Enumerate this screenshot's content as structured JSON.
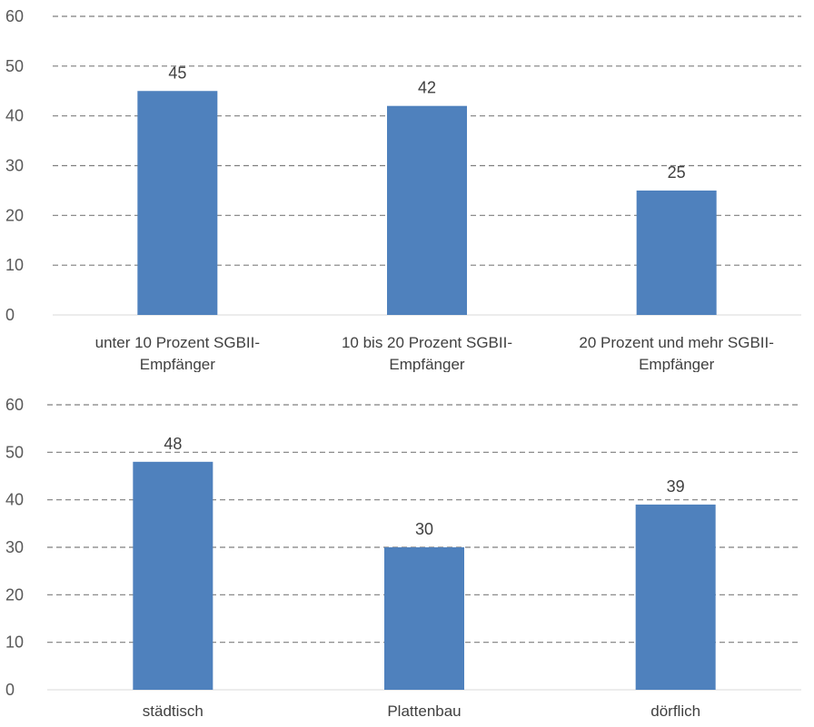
{
  "chart_data": [
    {
      "type": "bar",
      "title": "",
      "xlabel": "",
      "ylabel": "",
      "ylim": [
        0,
        60
      ],
      "yticks": [
        0,
        10,
        20,
        30,
        40,
        50,
        60
      ],
      "grid": true,
      "legend": "none",
      "bar_color": "#4f81bd",
      "categories": [
        [
          "unter 10 Prozent SGBII-",
          "Empfänger"
        ],
        [
          "10 bis 20 Prozent SGBII-",
          "Empfänger"
        ],
        [
          "20 Prozent und mehr SGBII-",
          "Empfänger"
        ]
      ],
      "values": [
        45,
        42,
        25
      ]
    },
    {
      "type": "bar",
      "title": "",
      "xlabel": "",
      "ylabel": "",
      "ylim": [
        0,
        60
      ],
      "yticks": [
        0,
        10,
        20,
        30,
        40,
        50,
        60
      ],
      "grid": true,
      "legend": "none",
      "bar_color": "#4f81bd",
      "categories": [
        [
          "städtisch"
        ],
        [
          "Plattenbau"
        ],
        [
          "dörflich"
        ]
      ],
      "values": [
        48,
        30,
        39
      ]
    }
  ]
}
